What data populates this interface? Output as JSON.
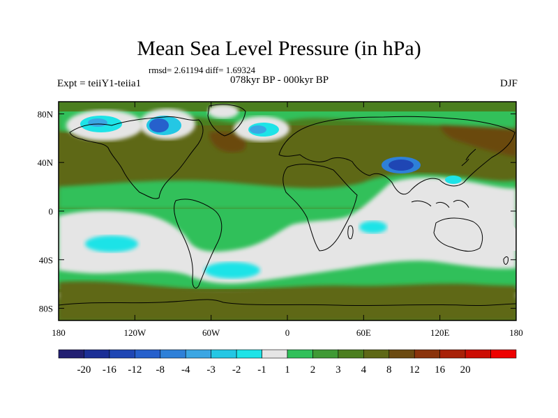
{
  "title": "Mean Sea Level Pressure (in hPa)",
  "stats": "rmsd= 2.61194 diff= 1.69324",
  "experiment": "Expt = teiiY1-teiia1",
  "period": "078kyr BP - 000kyr BP",
  "season": "DJF",
  "map": {
    "lon_range": [
      -180,
      180
    ],
    "lat_range": [
      -90,
      90
    ],
    "x_ticks": [
      {
        "value": -180,
        "label": "180"
      },
      {
        "value": -120,
        "label": "120W"
      },
      {
        "value": -60,
        "label": "60W"
      },
      {
        "value": 0,
        "label": "0"
      },
      {
        "value": 60,
        "label": "60E"
      },
      {
        "value": 120,
        "label": "120E"
      },
      {
        "value": 180,
        "label": "180"
      }
    ],
    "y_ticks": [
      {
        "value": 80,
        "label": "80N"
      },
      {
        "value": 40,
        "label": "40N"
      },
      {
        "value": 0,
        "label": "0"
      },
      {
        "value": -40,
        "label": "40S"
      },
      {
        "value": -80,
        "label": "80S"
      }
    ]
  },
  "colorbar": {
    "colors": [
      "#221f72",
      "#1c2f96",
      "#1f46b4",
      "#2660cc",
      "#2e80d8",
      "#3ba6e3",
      "#24c7e4",
      "#1ee3e7",
      "#e5e5e5",
      "#30c05a",
      "#3f9a35",
      "#4b7e1f",
      "#5e6816",
      "#6b4a10",
      "#8a330b",
      "#a82108",
      "#cc0d04",
      "#ee0000"
    ],
    "labels": [
      "-20",
      "-16",
      "-12",
      "-8",
      "-4",
      "-3",
      "-2",
      "-1",
      "1",
      "2",
      "3",
      "4",
      "8",
      "12",
      "16",
      "20"
    ]
  },
  "colors": {
    "olive": "#5e6816",
    "dark_olive": "#4b7e1f",
    "green": "#30c05a",
    "light_grey": "#e5e5e5",
    "cyan": "#1ee3e7",
    "blue": "#2660cc",
    "brown": "#6b4a10"
  }
}
